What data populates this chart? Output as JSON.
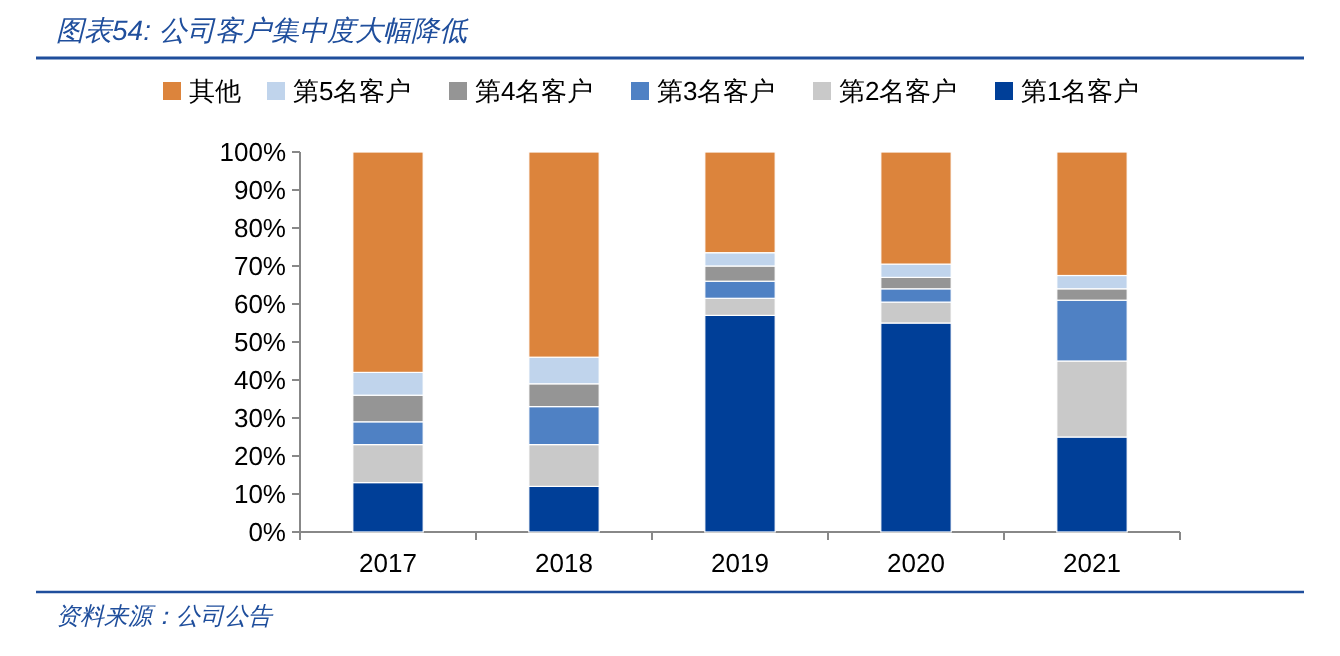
{
  "chart_data": {
    "type": "bar",
    "stacked": true,
    "title": "图表54: 公司客户集中度大幅降低",
    "categories": [
      "2017",
      "2018",
      "2019",
      "2020",
      "2021"
    ],
    "series": [
      {
        "name": "第1名客户",
        "color": "#003f98",
        "values": [
          13,
          12,
          57,
          55,
          25
        ]
      },
      {
        "name": "第2名客户",
        "color": "#c9c9c9",
        "values": [
          10,
          11,
          4.5,
          5.5,
          20
        ]
      },
      {
        "name": "第3名客户",
        "color": "#4f81c4",
        "values": [
          6,
          10,
          4.5,
          3.5,
          16
        ]
      },
      {
        "name": "第4名客户",
        "color": "#959595",
        "values": [
          7,
          6,
          4,
          3,
          3
        ]
      },
      {
        "name": "第5名客户",
        "color": "#c0d4ec",
        "values": [
          6,
          7,
          3.5,
          3.5,
          3.5
        ]
      },
      {
        "name": "其他",
        "color": "#dc843c",
        "values": [
          58,
          54,
          26.5,
          29.5,
          32.5
        ]
      }
    ],
    "ylim": [
      0,
      100
    ],
    "yticks": [
      {
        "value": 0,
        "label": "0%"
      },
      {
        "value": 10,
        "label": "10%"
      },
      {
        "value": 20,
        "label": "20%"
      },
      {
        "value": 30,
        "label": "30%"
      },
      {
        "value": 40,
        "label": "40%"
      },
      {
        "value": 50,
        "label": "50%"
      },
      {
        "value": 60,
        "label": "60%"
      },
      {
        "value": 70,
        "label": "70%"
      },
      {
        "value": 80,
        "label": "80%"
      },
      {
        "value": 90,
        "label": "90%"
      },
      {
        "value": 100,
        "label": "100%"
      }
    ],
    "legend": "top",
    "annotations": [
      "资料来源：公司公告"
    ]
  }
}
